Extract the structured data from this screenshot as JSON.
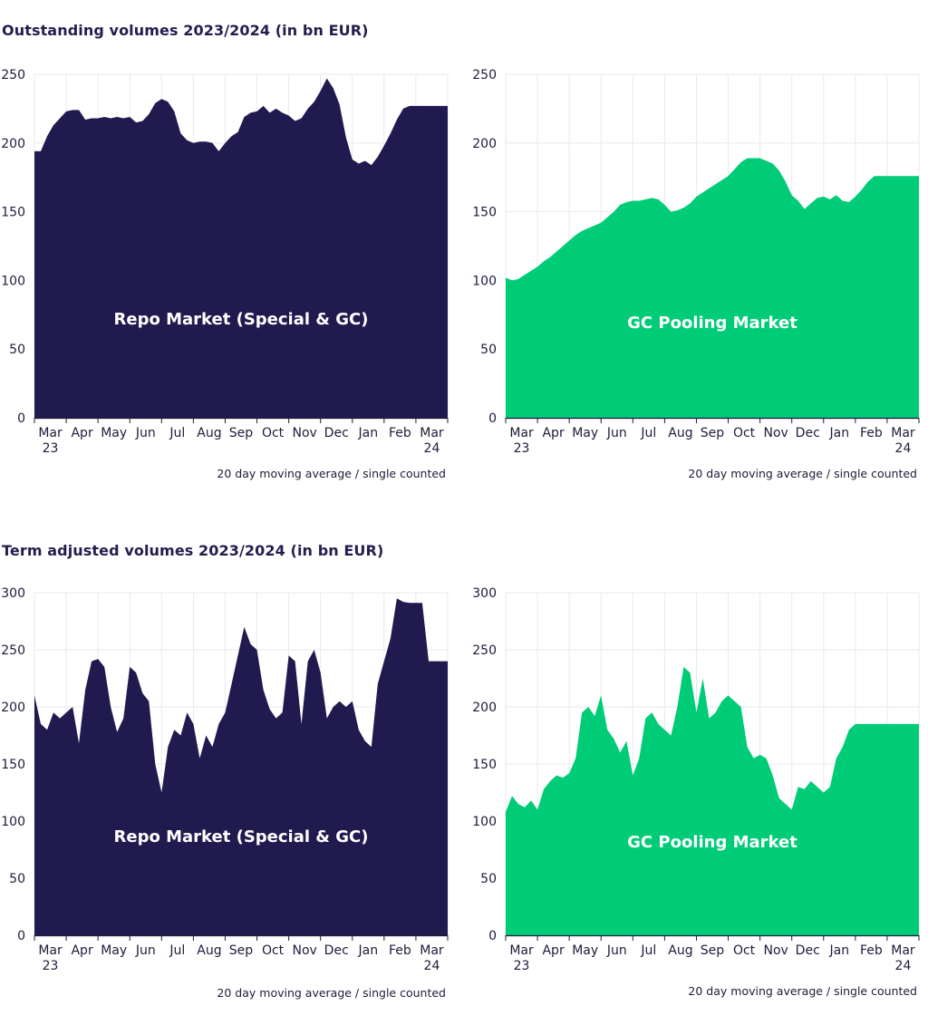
{
  "sections": {
    "outstanding_title": "Outstanding volumes 2023/2024 (in bn EUR)",
    "term_title": "Term adjusted volumes 2023/2024 (in bn EUR)"
  },
  "colors": {
    "repo": "#211a4e",
    "gc": "#00cc78",
    "grid": "#e9e9ee",
    "axis": "#1c1c3a"
  },
  "chart_data": [
    {
      "id": "outstanding-repo",
      "type": "area",
      "title": "Repo Market (Special & GC)",
      "note": "20 day moving average / single counted",
      "color": "repo",
      "ylim": [
        0,
        250
      ],
      "yticks": [
        0,
        50,
        100,
        150,
        200,
        250
      ],
      "xticks": [
        {
          "label": "Mar",
          "sub": "23",
          "pos": 0.5
        },
        {
          "label": "Apr",
          "sub": "",
          "pos": 1.5
        },
        {
          "label": "May",
          "sub": "",
          "pos": 2.5
        },
        {
          "label": "Jun",
          "sub": "",
          "pos": 3.5
        },
        {
          "label": "Jul",
          "sub": "",
          "pos": 4.5
        },
        {
          "label": "Aug",
          "sub": "",
          "pos": 5.5
        },
        {
          "label": "Sep",
          "sub": "",
          "pos": 6.5
        },
        {
          "label": "Oct",
          "sub": "",
          "pos": 7.5
        },
        {
          "label": "Nov",
          "sub": "",
          "pos": 8.5
        },
        {
          "label": "Dec",
          "sub": "",
          "pos": 9.5
        },
        {
          "label": "Jan",
          "sub": "",
          "pos": 10.5
        },
        {
          "label": "Feb",
          "sub": "",
          "pos": 11.5
        },
        {
          "label": "Mar",
          "sub": "24",
          "pos": 12.5
        }
      ],
      "xlim": [
        0,
        13
      ],
      "series": {
        "x": [
          0,
          0.2,
          0.4,
          0.6,
          0.8,
          1.0,
          1.2,
          1.4,
          1.6,
          1.8,
          2.0,
          2.2,
          2.4,
          2.6,
          2.8,
          3.0,
          3.2,
          3.4,
          3.6,
          3.8,
          4.0,
          4.2,
          4.4,
          4.6,
          4.8,
          5.0,
          5.2,
          5.4,
          5.6,
          5.8,
          6.0,
          6.2,
          6.4,
          6.6,
          6.8,
          7.0,
          7.2,
          7.4,
          7.6,
          7.8,
          8.0,
          8.2,
          8.4,
          8.6,
          8.8,
          9.0,
          9.2,
          9.4,
          9.6,
          9.8,
          10.0,
          10.2,
          10.4,
          10.6,
          10.8,
          11.0,
          11.2,
          11.4,
          11.6,
          11.8,
          12.0,
          12.2,
          12.4,
          12.6,
          12.8,
          13.0
        ],
        "y": [
          194,
          194,
          205,
          213,
          218,
          223,
          224,
          224,
          217,
          218,
          218,
          219,
          218,
          219,
          218,
          219,
          215,
          216,
          221,
          229,
          232,
          230,
          223,
          207,
          202,
          200,
          201,
          201,
          200,
          194,
          200,
          205,
          208,
          219,
          222,
          223,
          227,
          222,
          225,
          222,
          220,
          216,
          218,
          225,
          230,
          238,
          247,
          240,
          228,
          204,
          188,
          185,
          187,
          184,
          190,
          198,
          207,
          217,
          225,
          227,
          227,
          227,
          227,
          227,
          227,
          227
        ]
      }
    },
    {
      "id": "outstanding-gc",
      "type": "area",
      "title": "GC Pooling Market",
      "note": "20 day moving average / single counted",
      "color": "gc",
      "ylim": [
        0,
        250
      ],
      "yticks": [
        0,
        50,
        100,
        150,
        200,
        250
      ],
      "xticks": [
        {
          "label": "Mar",
          "sub": "23",
          "pos": 0.5
        },
        {
          "label": "Apr",
          "sub": "",
          "pos": 1.5
        },
        {
          "label": "May",
          "sub": "",
          "pos": 2.5
        },
        {
          "label": "Jun",
          "sub": "",
          "pos": 3.5
        },
        {
          "label": "Jul",
          "sub": "",
          "pos": 4.5
        },
        {
          "label": "Aug",
          "sub": "",
          "pos": 5.5
        },
        {
          "label": "Sep",
          "sub": "",
          "pos": 6.5
        },
        {
          "label": "Oct",
          "sub": "",
          "pos": 7.5
        },
        {
          "label": "Nov",
          "sub": "",
          "pos": 8.5
        },
        {
          "label": "Dec",
          "sub": "",
          "pos": 9.5
        },
        {
          "label": "Jan",
          "sub": "",
          "pos": 10.5
        },
        {
          "label": "Feb",
          "sub": "",
          "pos": 11.5
        },
        {
          "label": "Mar",
          "sub": "24",
          "pos": 12.5
        }
      ],
      "xlim": [
        0,
        13
      ],
      "series": {
        "x": [
          0,
          0.2,
          0.4,
          0.6,
          0.8,
          1.0,
          1.2,
          1.4,
          1.6,
          1.8,
          2.0,
          2.2,
          2.4,
          2.6,
          2.8,
          3.0,
          3.2,
          3.4,
          3.6,
          3.8,
          4.0,
          4.2,
          4.4,
          4.6,
          4.8,
          5.0,
          5.2,
          5.4,
          5.6,
          5.8,
          6.0,
          6.2,
          6.4,
          6.6,
          6.8,
          7.0,
          7.2,
          7.4,
          7.6,
          7.8,
          8.0,
          8.2,
          8.4,
          8.6,
          8.8,
          9.0,
          9.2,
          9.4,
          9.6,
          9.8,
          10.0,
          10.2,
          10.4,
          10.6,
          10.8,
          11.0,
          11.2,
          11.4,
          11.6,
          11.8,
          12.0,
          12.2,
          12.4,
          12.6,
          12.8,
          13.0
        ],
        "y": [
          102,
          100,
          101,
          104,
          107,
          110,
          114,
          117,
          121,
          125,
          129,
          133,
          136,
          138,
          140,
          142,
          146,
          150,
          155,
          157,
          158,
          158,
          159,
          160,
          159,
          155,
          150,
          151,
          153,
          156,
          161,
          164,
          167,
          170,
          173,
          176,
          181,
          186,
          189,
          189,
          189,
          187,
          185,
          180,
          172,
          162,
          158,
          152,
          156,
          160,
          161,
          159,
          162,
          158,
          157,
          161,
          166,
          172,
          176,
          176,
          176,
          176,
          176,
          176,
          176,
          176
        ]
      }
    },
    {
      "id": "term-repo",
      "type": "area",
      "title": "Repo Market (Special & GC)",
      "note": "20 day moving average / single counted",
      "color": "repo",
      "ylim": [
        0,
        300
      ],
      "yticks": [
        0,
        50,
        100,
        150,
        200,
        250,
        300
      ],
      "xticks": [
        {
          "label": "Mar",
          "sub": "23",
          "pos": 0.5
        },
        {
          "label": "Apr",
          "sub": "",
          "pos": 1.5
        },
        {
          "label": "May",
          "sub": "",
          "pos": 2.5
        },
        {
          "label": "Jun",
          "sub": "",
          "pos": 3.5
        },
        {
          "label": "Jul",
          "sub": "",
          "pos": 4.5
        },
        {
          "label": "Aug",
          "sub": "",
          "pos": 5.5
        },
        {
          "label": "Sep",
          "sub": "",
          "pos": 6.5
        },
        {
          "label": "Oct",
          "sub": "",
          "pos": 7.5
        },
        {
          "label": "Nov",
          "sub": "",
          "pos": 8.5
        },
        {
          "label": "Dec",
          "sub": "",
          "pos": 9.5
        },
        {
          "label": "Jan",
          "sub": "",
          "pos": 10.5
        },
        {
          "label": "Feb",
          "sub": "",
          "pos": 11.5
        },
        {
          "label": "Mar",
          "sub": "24",
          "pos": 12.5
        }
      ],
      "xlim": [
        0,
        13
      ],
      "series": {
        "x": [
          0,
          0.2,
          0.4,
          0.6,
          0.8,
          1.0,
          1.2,
          1.4,
          1.6,
          1.8,
          2.0,
          2.2,
          2.4,
          2.6,
          2.8,
          3.0,
          3.2,
          3.4,
          3.6,
          3.8,
          4.0,
          4.2,
          4.4,
          4.6,
          4.8,
          5.0,
          5.2,
          5.4,
          5.6,
          5.8,
          6.0,
          6.2,
          6.4,
          6.6,
          6.8,
          7.0,
          7.2,
          7.4,
          7.6,
          7.8,
          8.0,
          8.2,
          8.4,
          8.6,
          8.8,
          9.0,
          9.2,
          9.4,
          9.6,
          9.8,
          10.0,
          10.2,
          10.4,
          10.6,
          10.8,
          11.0,
          11.2,
          11.4,
          11.6,
          11.8,
          12.0,
          12.2,
          12.4,
          12.6,
          12.8,
          13.0
        ],
        "y": [
          210,
          185,
          180,
          195,
          190,
          195,
          200,
          168,
          215,
          240,
          242,
          235,
          200,
          178,
          190,
          235,
          230,
          212,
          205,
          150,
          125,
          165,
          180,
          175,
          195,
          185,
          155,
          175,
          165,
          185,
          195,
          220,
          245,
          270,
          255,
          250,
          215,
          198,
          190,
          195,
          245,
          240,
          185,
          240,
          250,
          230,
          190,
          200,
          205,
          200,
          205,
          180,
          170,
          165,
          220,
          240,
          260,
          295,
          292,
          291,
          291,
          291,
          240,
          240,
          240,
          240
        ]
      }
    },
    {
      "id": "term-gc",
      "type": "area",
      "title": "GC Pooling Market",
      "note": "20 day moving average / single counted",
      "color": "gc",
      "ylim": [
        0,
        300
      ],
      "yticks": [
        0,
        50,
        100,
        150,
        200,
        250,
        300
      ],
      "xticks": [
        {
          "label": "Mar",
          "sub": "23",
          "pos": 0.5
        },
        {
          "label": "Apr",
          "sub": "",
          "pos": 1.5
        },
        {
          "label": "May",
          "sub": "",
          "pos": 2.5
        },
        {
          "label": "Jun",
          "sub": "",
          "pos": 3.5
        },
        {
          "label": "Jul",
          "sub": "",
          "pos": 4.5
        },
        {
          "label": "Aug",
          "sub": "",
          "pos": 5.5
        },
        {
          "label": "Sep",
          "sub": "",
          "pos": 6.5
        },
        {
          "label": "Oct",
          "sub": "",
          "pos": 7.5
        },
        {
          "label": "Nov",
          "sub": "",
          "pos": 8.5
        },
        {
          "label": "Dec",
          "sub": "",
          "pos": 9.5
        },
        {
          "label": "Jan",
          "sub": "",
          "pos": 10.5
        },
        {
          "label": "Feb",
          "sub": "",
          "pos": 11.5
        },
        {
          "label": "Mar",
          "sub": "24",
          "pos": 12.5
        }
      ],
      "xlim": [
        0,
        13
      ],
      "series": {
        "x": [
          0,
          0.2,
          0.4,
          0.6,
          0.8,
          1.0,
          1.2,
          1.4,
          1.6,
          1.8,
          2.0,
          2.2,
          2.4,
          2.6,
          2.8,
          3.0,
          3.2,
          3.4,
          3.6,
          3.8,
          4.0,
          4.2,
          4.4,
          4.6,
          4.8,
          5.0,
          5.2,
          5.4,
          5.6,
          5.8,
          6.0,
          6.2,
          6.4,
          6.6,
          6.8,
          7.0,
          7.2,
          7.4,
          7.6,
          7.8,
          8.0,
          8.2,
          8.4,
          8.6,
          8.8,
          9.0,
          9.2,
          9.4,
          9.6,
          9.8,
          10.0,
          10.2,
          10.4,
          10.6,
          10.8,
          11.0,
          11.2,
          11.4,
          11.6,
          11.8,
          12.0,
          12.2,
          12.4,
          12.6,
          12.8,
          13.0
        ],
        "y": [
          108,
          122,
          115,
          112,
          118,
          110,
          128,
          135,
          140,
          138,
          142,
          155,
          195,
          200,
          192,
          210,
          180,
          172,
          160,
          170,
          140,
          155,
          190,
          195,
          185,
          180,
          175,
          200,
          235,
          230,
          195,
          225,
          190,
          195,
          205,
          210,
          205,
          200,
          165,
          155,
          158,
          155,
          140,
          120,
          115,
          110,
          130,
          128,
          135,
          130,
          125,
          130,
          155,
          165,
          180,
          185,
          185,
          185,
          185,
          185,
          185,
          185,
          185,
          185,
          185,
          185
        ]
      }
    }
  ]
}
